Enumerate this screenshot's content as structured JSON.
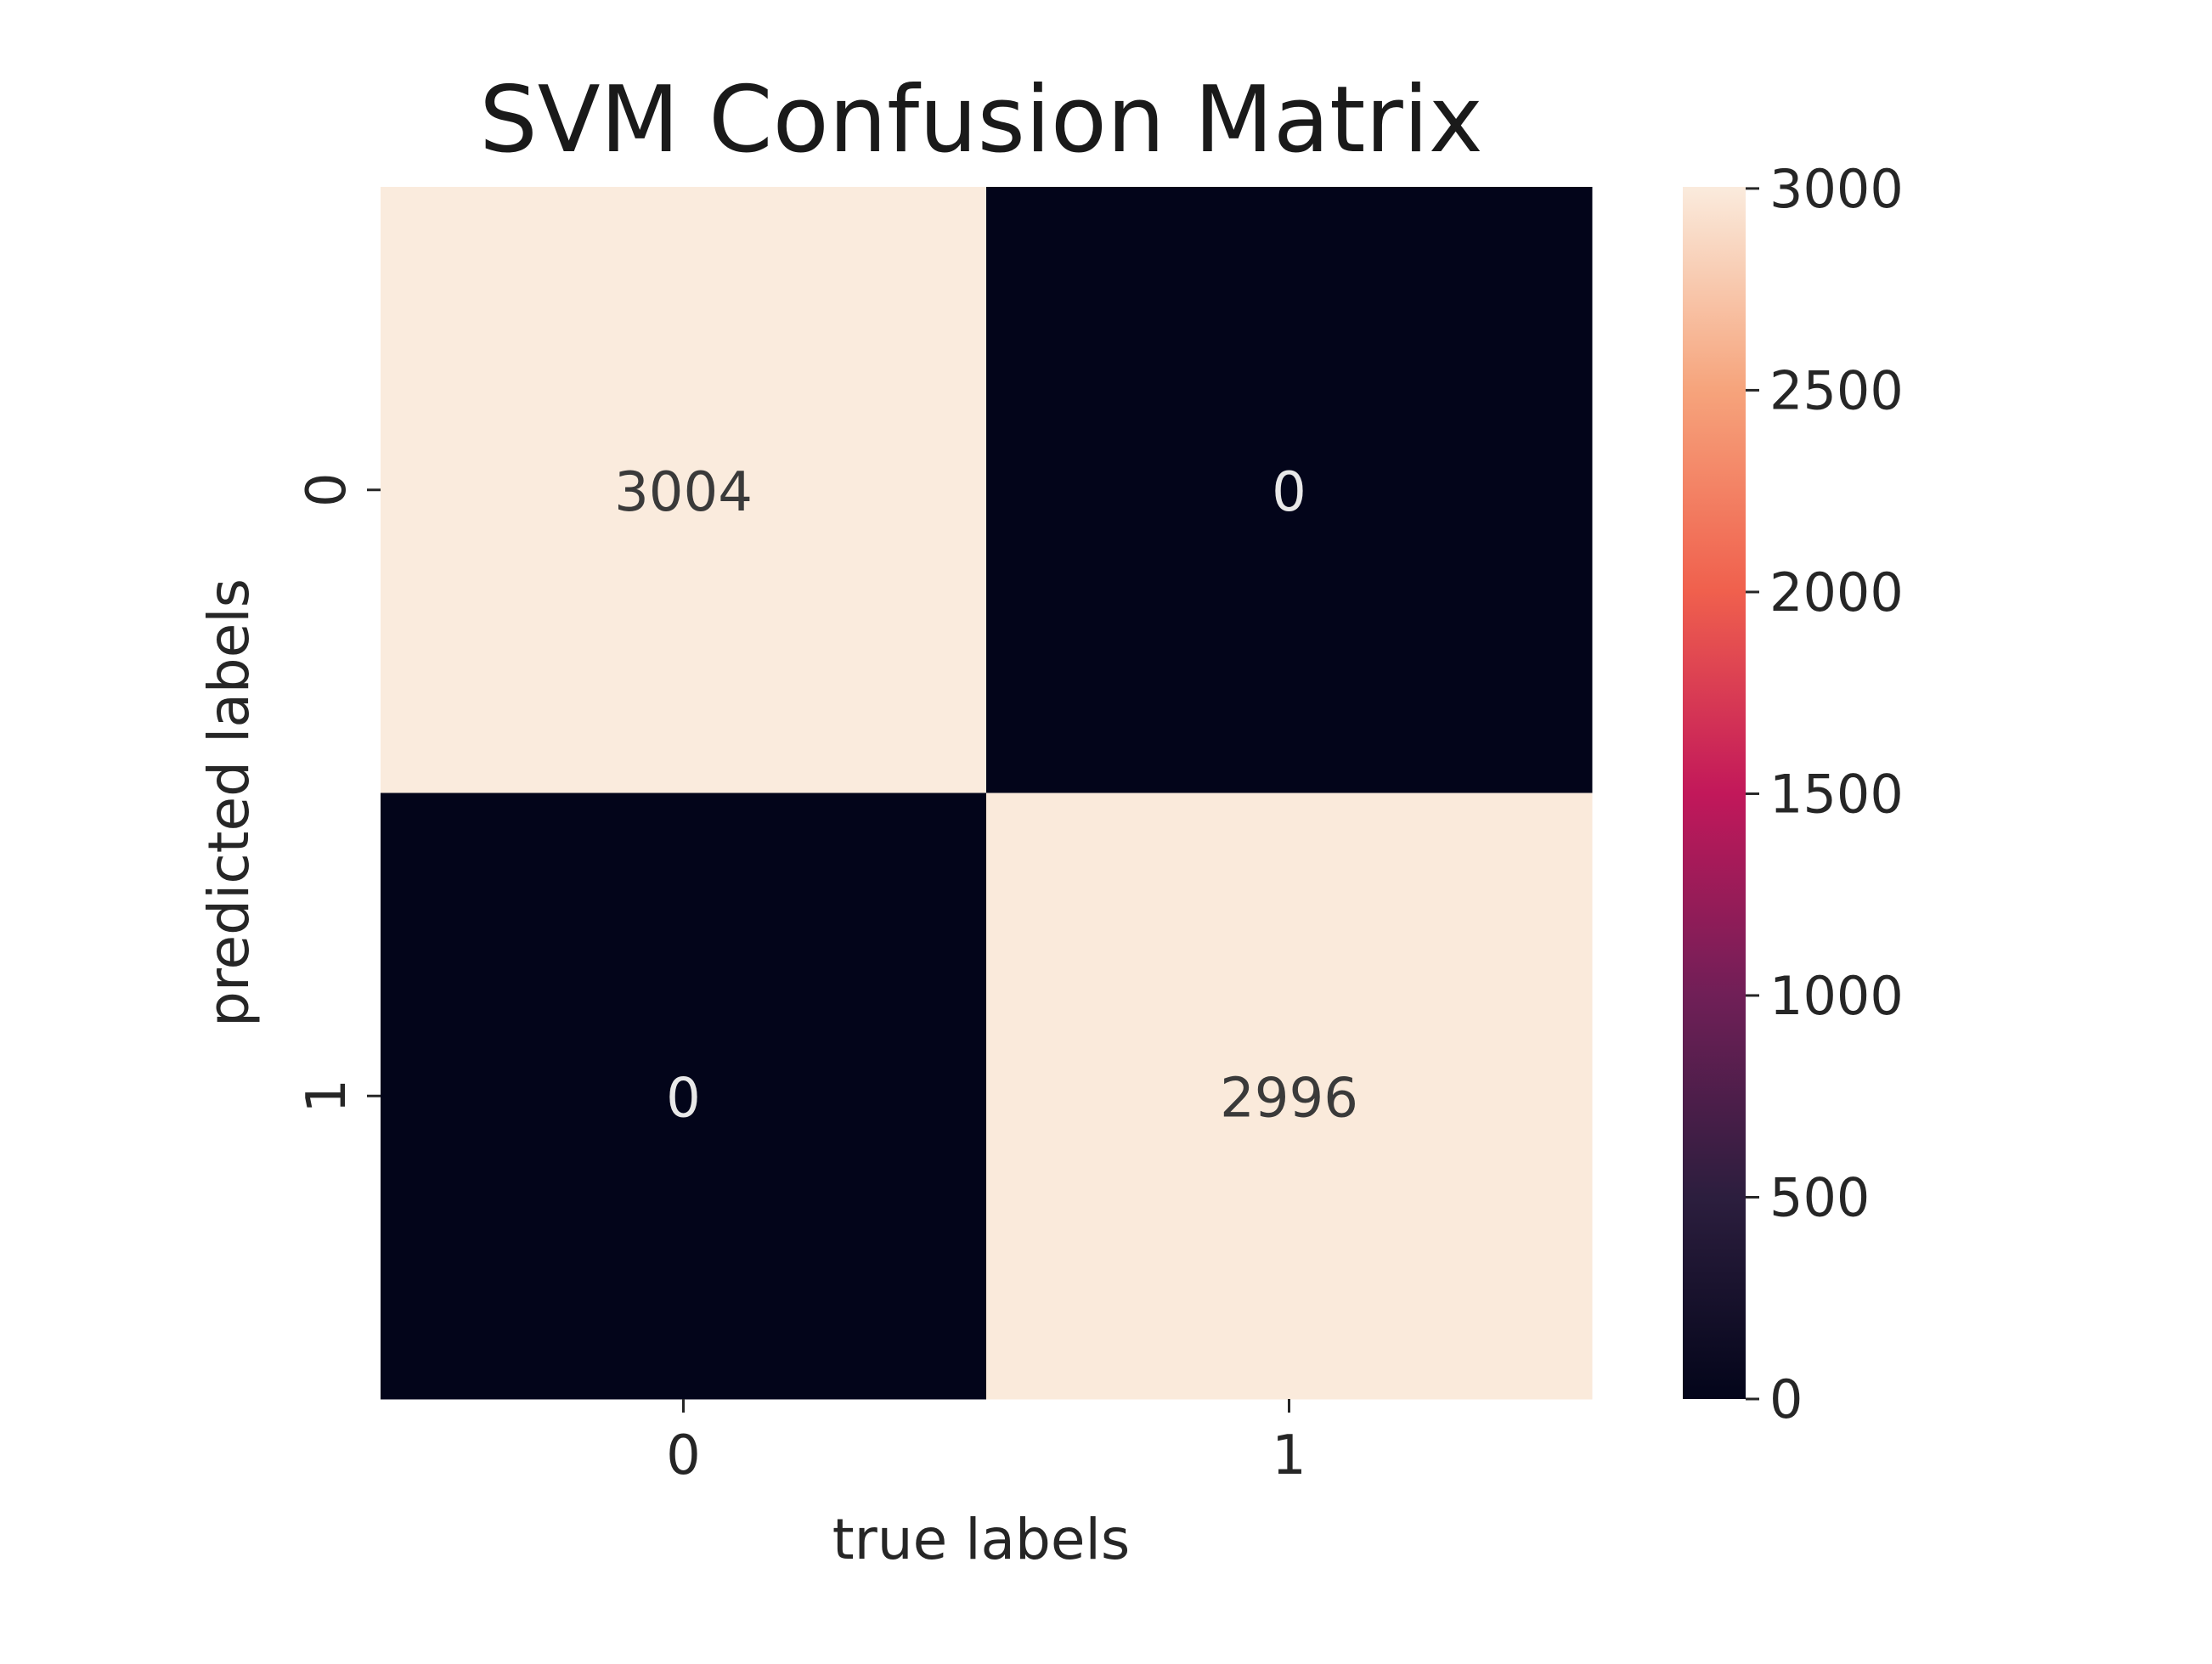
{
  "chart_data": {
    "type": "heatmap",
    "title": "SVM Confusion Matrix",
    "xlabel": "true labels",
    "ylabel": "predicted labels",
    "x_categories": [
      "0",
      "1"
    ],
    "y_categories": [
      "0",
      "1"
    ],
    "matrix": [
      [
        3004,
        0
      ],
      [
        0,
        2996
      ]
    ],
    "annotations": [
      [
        "3004",
        "0"
      ],
      [
        "0",
        "2996"
      ]
    ],
    "colorbar": {
      "ticks": [
        0,
        500,
        1000,
        1500,
        2000,
        2500,
        3000
      ],
      "tick_labels": [
        "0",
        "500",
        "1000",
        "1500",
        "2000",
        "2500",
        "3000"
      ],
      "range": [
        0,
        3004
      ],
      "colormap_stops": [
        "#03051a",
        "#2c1e3e",
        "#701f57",
        "#c2185a",
        "#f0604d",
        "#f6a47c",
        "#faebdd"
      ]
    }
  }
}
